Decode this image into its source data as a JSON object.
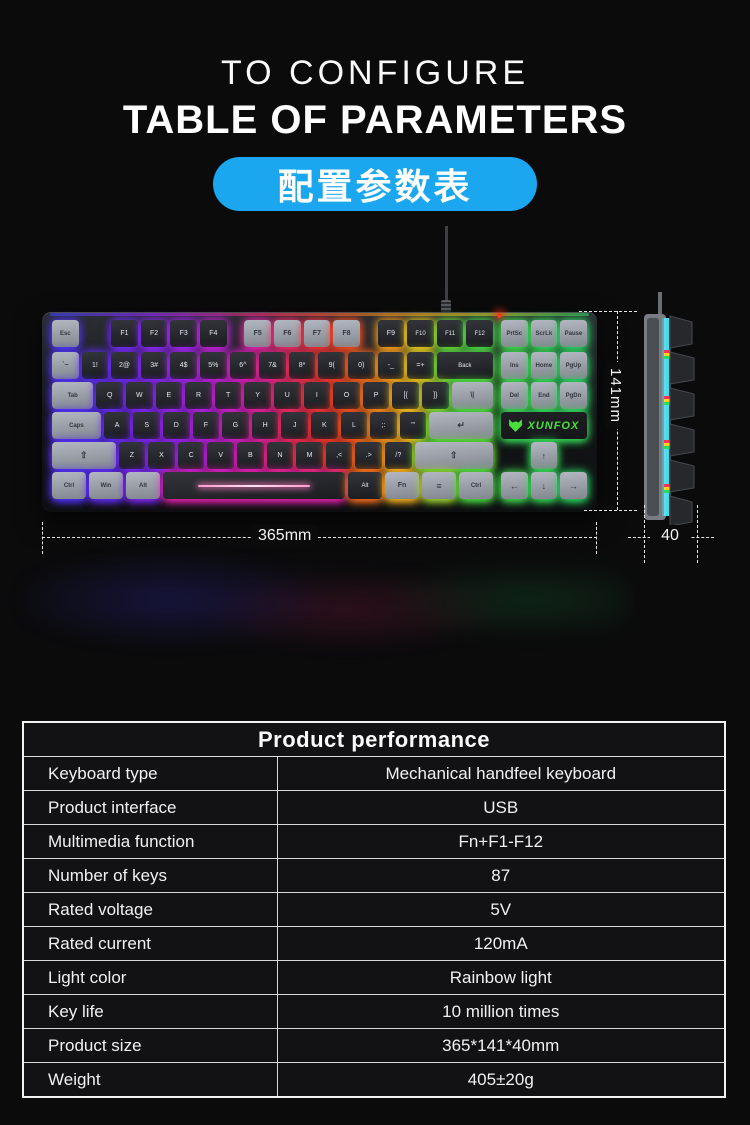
{
  "header": {
    "title_line1": "TO CONFIGURE",
    "title_line2": "TABLE OF PARAMETERS",
    "badge": {
      "text": "配置参数表",
      "color": "#1ba7ef"
    }
  },
  "dimensions": {
    "width_label": "365mm",
    "height_label": "141mm",
    "depth_label": "40"
  },
  "keyboard": {
    "brand": "XUNFOX",
    "brand_color": "#4ae03c",
    "led_color": "#ff3018",
    "glow_stops": [
      [
        0.0,
        "#4338ff"
      ],
      [
        0.14,
        "#6d2bff"
      ],
      [
        0.26,
        "#a625ff"
      ],
      [
        0.38,
        "#e81fc8"
      ],
      [
        0.47,
        "#ff2d5e"
      ],
      [
        0.55,
        "#ff3b24"
      ],
      [
        0.63,
        "#ff8c1a"
      ],
      [
        0.7,
        "#ffd21e"
      ],
      [
        0.78,
        "#52e23e"
      ],
      [
        1.0,
        "#2bd964"
      ]
    ],
    "main_rows": [
      [
        {
          "t": "Esc",
          "gray": 1
        },
        {
          "t": "F1",
          "gap": 1
        },
        {
          "t": "F2"
        },
        {
          "t": "F3"
        },
        {
          "t": "F4"
        },
        {
          "t": "F5",
          "gray": 1,
          "gap": 0.5
        },
        {
          "t": "F6",
          "gray": 1
        },
        {
          "t": "F7",
          "gray": 1
        },
        {
          "t": "F8",
          "gray": 1
        },
        {
          "t": "F9",
          "gap": 0.5
        },
        {
          "t": "F10"
        },
        {
          "t": "F11"
        },
        {
          "t": "F12"
        }
      ],
      [
        {
          "t": "`~",
          "gray": 1
        },
        {
          "t": "1!"
        },
        {
          "t": "2@"
        },
        {
          "t": "3#"
        },
        {
          "t": "4$"
        },
        {
          "t": "5%"
        },
        {
          "t": "6^"
        },
        {
          "t": "7&"
        },
        {
          "t": "8*"
        },
        {
          "t": "9("
        },
        {
          "t": "0)"
        },
        {
          "t": "-_"
        },
        {
          "t": "=+"
        },
        {
          "t": "Back",
          "w": 2
        }
      ],
      [
        {
          "t": "Tab",
          "w": 1.5,
          "gray": 1
        },
        {
          "t": "Q"
        },
        {
          "t": "W"
        },
        {
          "t": "E"
        },
        {
          "t": "R"
        },
        {
          "t": "T"
        },
        {
          "t": "Y"
        },
        {
          "t": "U"
        },
        {
          "t": "I"
        },
        {
          "t": "O"
        },
        {
          "t": "P"
        },
        {
          "t": "[{"
        },
        {
          "t": "]}"
        },
        {
          "t": "\\|",
          "w": 1.5,
          "gray": 1
        }
      ],
      [
        {
          "t": "Caps",
          "w": 1.75,
          "gray": 1
        },
        {
          "t": "A"
        },
        {
          "t": "S"
        },
        {
          "t": "D"
        },
        {
          "t": "F"
        },
        {
          "t": "G"
        },
        {
          "t": "H"
        },
        {
          "t": "J"
        },
        {
          "t": "K"
        },
        {
          "t": "L"
        },
        {
          "t": ";:"
        },
        {
          "t": "'\""
        },
        {
          "t": "↵",
          "w": 2.25,
          "gray": 1
        }
      ],
      [
        {
          "t": "⇧",
          "w": 2.25,
          "gray": 1
        },
        {
          "t": "Z"
        },
        {
          "t": "X"
        },
        {
          "t": "C"
        },
        {
          "t": "V"
        },
        {
          "t": "B"
        },
        {
          "t": "N"
        },
        {
          "t": "M"
        },
        {
          "t": ",<"
        },
        {
          "t": ".>"
        },
        {
          "t": "/?"
        },
        {
          "t": "⇧",
          "w": 2.75,
          "gray": 1
        }
      ],
      [
        {
          "t": "Ctrl",
          "w": 1.25,
          "gray": 1
        },
        {
          "t": "Win",
          "w": 1.25,
          "gray": 1
        },
        {
          "t": "Alt",
          "w": 1.25,
          "gray": 1
        },
        {
          "t": "",
          "w": 6.25,
          "space": 1
        },
        {
          "t": "Alt",
          "w": 1.25
        },
        {
          "t": "Fn",
          "w": 1.25,
          "gray": 1
        },
        {
          "t": "≡",
          "w": 1.25,
          "gray": 1
        },
        {
          "t": "Ctrl",
          "w": 1.25,
          "gray": 1
        }
      ]
    ],
    "nav_rows": [
      [
        "PrtSc",
        "ScrLk",
        "Pause"
      ],
      [
        "Ins",
        "Home",
        "PgUp"
      ],
      [
        "Del",
        "End",
        "PgDn"
      ]
    ],
    "arrow_up": "↑",
    "arrow_row": [
      "←",
      "↓",
      "→"
    ]
  },
  "table": {
    "title": "Product performance",
    "rows": [
      {
        "label": "Keyboard type",
        "value": "Mechanical handfeel keyboard"
      },
      {
        "label": "Product interface",
        "value": "USB"
      },
      {
        "label": "Multimedia function",
        "value": "Fn+F1-F12"
      },
      {
        "label": "Number of keys",
        "value": "87"
      },
      {
        "label": "Rated voltage",
        "value": "5V"
      },
      {
        "label": "Rated current",
        "value": "120mA"
      },
      {
        "label": "Light color",
        "value": "Rainbow light"
      },
      {
        "label": "Key life",
        "value": "10 million times"
      },
      {
        "label": "Product size",
        "value": "365*141*40mm"
      },
      {
        "label": "Weight",
        "value": "405±20g"
      }
    ]
  }
}
